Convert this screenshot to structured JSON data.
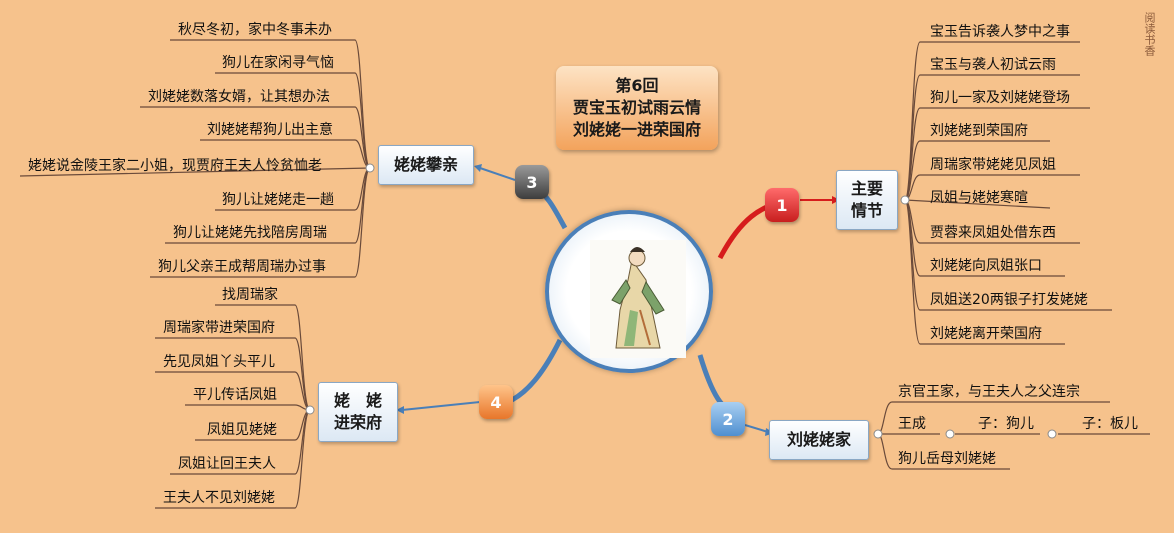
{
  "title": {
    "line1": "第6回",
    "line2": "贾宝玉初试雨云情",
    "line3": "刘姥姥一进荣国府"
  },
  "watermark": "阅读书香",
  "branches": [
    {
      "badge": "1",
      "label": "主要\n情节",
      "items": [
        "宝玉告诉袭人梦中之事",
        "宝玉与袭人初试云雨",
        "狗儿一家及刘姥姥登场",
        "刘姥姥到荣国府",
        "周瑞家带姥姥见凤姐",
        "凤姐与姥姥寒暄",
        "贾蓉来凤姐处借东西",
        "刘姥姥向凤姐张口",
        "凤姐送20两银子打发姥姥",
        "刘姥姥离开荣国府"
      ]
    },
    {
      "badge": "2",
      "label": "刘姥姥家",
      "items": [
        "京官王家，与王夫人之父连宗",
        "王成",
        "子：狗儿",
        "子：板儿",
        "狗儿岳母刘姥姥"
      ]
    },
    {
      "badge": "3",
      "label": "姥姥攀亲",
      "items": [
        "秋尽冬初，家中冬事未办",
        "狗儿在家闲寻气恼",
        "刘姥姥数落女婿，让其想办法",
        "刘姥姥帮狗儿出主意",
        "姥姥说金陵王家二小姐，现贾府王夫人怜贫恤老",
        "狗儿让姥姥走一趟",
        "狗儿让姥姥先找陪房周瑞",
        "狗儿父亲王成帮周瑞办过事"
      ]
    },
    {
      "badge": "4",
      "label": "姥　姥\n进荣府",
      "items": [
        "找周瑞家",
        "周瑞家带进荣国府",
        "先见凤姐丫头平儿",
        "平儿传话凤姐",
        "凤姐见姥姥",
        "凤姐让回王夫人",
        "王夫人不见刘姥姥"
      ]
    }
  ],
  "colors": {
    "background": "#f6c28c",
    "line": "#6a4a3a",
    "hub": "#4a7fb8",
    "badge1": "#c81e1e",
    "badge2": "#4f8fd0",
    "badge3": "#3d3d3d",
    "badge4": "#e8762a"
  }
}
